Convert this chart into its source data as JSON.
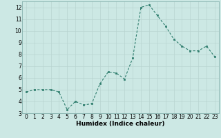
{
  "x": [
    0,
    1,
    2,
    3,
    4,
    5,
    6,
    7,
    8,
    9,
    10,
    11,
    12,
    13,
    14,
    15,
    16,
    17,
    18,
    19,
    20,
    21,
    22,
    23
  ],
  "y": [
    4.8,
    5.0,
    5.0,
    5.0,
    4.8,
    3.3,
    4.0,
    3.7,
    3.8,
    5.5,
    6.5,
    6.4,
    5.9,
    7.7,
    12.0,
    12.2,
    11.3,
    10.4,
    9.3,
    8.7,
    8.3,
    8.3,
    8.7,
    7.8
  ],
  "xlabel": "Humidex (Indice chaleur)",
  "xlim": [
    -0.5,
    23.5
  ],
  "ylim": [
    3,
    12.5
  ],
  "yticks": [
    3,
    4,
    5,
    6,
    7,
    8,
    9,
    10,
    11,
    12
  ],
  "xticks": [
    0,
    1,
    2,
    3,
    4,
    5,
    6,
    7,
    8,
    9,
    10,
    11,
    12,
    13,
    14,
    15,
    16,
    17,
    18,
    19,
    20,
    21,
    22,
    23
  ],
  "line_color": "#2e7d6d",
  "marker_color": "#2e7d6d",
  "bg_color": "#cce8e4",
  "grid_color": "#b8d4d0",
  "label_fontsize": 6.5,
  "tick_fontsize": 5.5
}
